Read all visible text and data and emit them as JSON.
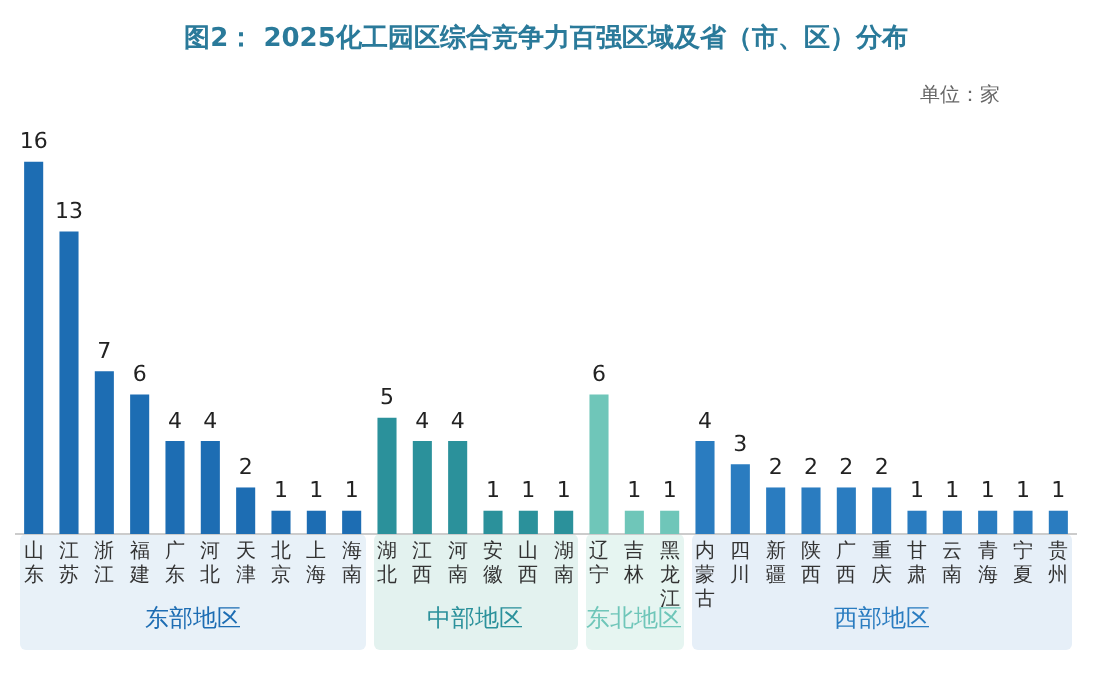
{
  "chart_data": {
    "type": "bar",
    "title": "图2： 2025化工园区综合竞争力百强区域及省（市、区）分布",
    "categories": [
      "山东",
      "江苏",
      "浙江",
      "福建",
      "广东",
      "河北",
      "天津",
      "北京",
      "上海",
      "海南",
      "湖北",
      "江西",
      "河南",
      "安徽",
      "山西",
      "湖南",
      "辽宁",
      "吉林",
      "黑龙江",
      "内蒙古",
      "四川",
      "新疆",
      "陕西",
      "广西",
      "重庆",
      "甘肃",
      "云南",
      "青海",
      "宁夏",
      "贵州"
    ],
    "values": [
      16,
      13,
      7,
      6,
      4,
      4,
      2,
      1,
      1,
      1,
      5,
      4,
      4,
      1,
      1,
      1,
      6,
      1,
      1,
      4,
      3,
      2,
      2,
      2,
      2,
      1,
      1,
      1,
      1,
      1
    ],
    "colors": [
      "#1d6db3",
      "#1d6db3",
      "#1d6db3",
      "#1d6db3",
      "#1d6db3",
      "#1d6db3",
      "#1d6db3",
      "#1d6db3",
      "#1d6db3",
      "#1d6db3",
      "#2b919b",
      "#2b919b",
      "#2b919b",
      "#2b919b",
      "#2b919b",
      "#2b919b",
      "#6fc6b9",
      "#6fc6b9",
      "#6fc6b9",
      "#2a7cc0",
      "#2a7cc0",
      "#2a7cc0",
      "#2a7cc0",
      "#2a7cc0",
      "#2a7cc0",
      "#2a7cc0",
      "#2a7cc0",
      "#2a7cc0",
      "#2a7cc0",
      "#2a7cc0"
    ],
    "data_labels": true,
    "grid": false,
    "legend": false,
    "annotations": [
      "单位：家",
      "东部地区",
      "中部地区",
      "东北地区",
      "西部地区"
    ]
  }
}
